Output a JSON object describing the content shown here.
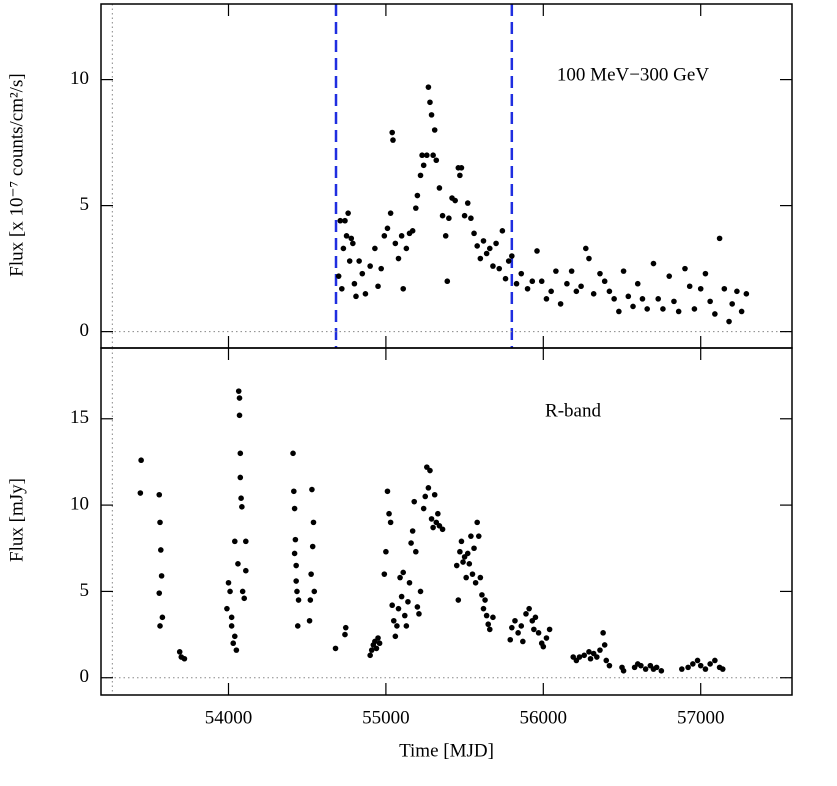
{
  "chart_data": [
    {
      "type": "scatter",
      "ylabel": "Flux [x 10⁻⁷ counts/cm²/s]",
      "annotation": "100 MeV−300 GeV",
      "color": "#000000",
      "xlim": [
        53190,
        57580
      ],
      "ylim": [
        -0.65,
        13.0
      ],
      "xticks": [
        54000,
        55000,
        56000,
        57000
      ],
      "yticks": [
        0,
        5,
        10
      ],
      "xtick_labels": false,
      "hline": 0,
      "vlines": [
        {
          "x": 53262,
          "style": "dotted",
          "color": "#888888"
        },
        {
          "x": 54683,
          "style": "dashed",
          "color": "#1f2ee0"
        },
        {
          "x": 55800,
          "style": "dashed",
          "color": "#1f2ee0"
        }
      ],
      "x": [
        54700,
        54710,
        54720,
        54730,
        54740,
        54750,
        54760,
        54770,
        54780,
        54790,
        54800,
        54810,
        54830,
        54850,
        54870,
        54900,
        54930,
        54950,
        54970,
        54990,
        55010,
        55030,
        55040,
        55045,
        55060,
        55080,
        55100,
        55110,
        55130,
        55150,
        55170,
        55190,
        55200,
        55220,
        55230,
        55240,
        55260,
        55270,
        55280,
        55290,
        55300,
        55310,
        55320,
        55340,
        55360,
        55380,
        55390,
        55400,
        55420,
        55440,
        55460,
        55470,
        55480,
        55500,
        55520,
        55540,
        55560,
        55580,
        55600,
        55620,
        55640,
        55660,
        55680,
        55700,
        55720,
        55740,
        55760,
        55780,
        55800,
        55830,
        55860,
        55900,
        55930,
        55960,
        55990,
        56020,
        56050,
        56080,
        56110,
        56150,
        56180,
        56210,
        56240,
        56270,
        56290,
        56320,
        56360,
        56390,
        56420,
        56450,
        56480,
        56510,
        56540,
        56570,
        56600,
        56630,
        56660,
        56700,
        56730,
        56760,
        56800,
        56830,
        56860,
        56900,
        56930,
        56960,
        57000,
        57030,
        57060,
        57090,
        57120,
        57150,
        57180,
        57200,
        57230,
        57260,
        57290
      ],
      "values": [
        2.2,
        4.4,
        1.7,
        3.3,
        4.4,
        3.8,
        4.7,
        2.8,
        3.7,
        3.5,
        1.9,
        1.4,
        2.8,
        2.3,
        1.5,
        2.6,
        3.3,
        1.8,
        2.5,
        3.8,
        4.1,
        4.7,
        7.9,
        7.6,
        3.5,
        2.9,
        3.8,
        1.7,
        3.3,
        3.9,
        4.0,
        4.9,
        5.4,
        6.2,
        7.0,
        6.6,
        7.0,
        9.7,
        9.1,
        8.6,
        7.0,
        8.0,
        6.8,
        5.7,
        4.6,
        3.8,
        2.0,
        4.5,
        5.3,
        5.2,
        6.5,
        6.2,
        6.5,
        4.6,
        5.1,
        4.5,
        3.9,
        3.4,
        2.9,
        3.6,
        3.1,
        3.3,
        2.6,
        3.5,
        2.5,
        4.0,
        2.1,
        2.8,
        3.0,
        1.9,
        2.3,
        1.7,
        2.0,
        3.2,
        2.0,
        1.3,
        1.6,
        2.4,
        1.1,
        1.9,
        2.4,
        1.6,
        1.8,
        3.3,
        2.9,
        1.5,
        2.3,
        2.0,
        1.6,
        1.3,
        0.8,
        2.4,
        1.4,
        1.0,
        1.9,
        1.3,
        0.9,
        2.7,
        1.3,
        0.9,
        2.2,
        1.2,
        0.8,
        2.5,
        1.8,
        0.9,
        1.7,
        2.3,
        1.2,
        0.7,
        3.7,
        1.7,
        0.4,
        1.1,
        1.6,
        0.8,
        1.5
      ]
    },
    {
      "type": "scatter",
      "ylabel": "Flux [mJy]",
      "xlabel": "Time [MJD]",
      "annotation": "R-band",
      "color": "#000000",
      "xlim": [
        53190,
        57580
      ],
      "ylim": [
        -1.0,
        19.1
      ],
      "xticks": [
        54000,
        55000,
        56000,
        57000
      ],
      "yticks": [
        0,
        5,
        10,
        15
      ],
      "xtick_labels": true,
      "hline": 0,
      "vlines": [
        {
          "x": 53262,
          "style": "dotted",
          "color": "#888888"
        }
      ],
      "x": [
        53440,
        53445,
        53560,
        53565,
        53570,
        53575,
        53560,
        53565,
        53580,
        53690,
        53700,
        53720,
        53990,
        54000,
        54010,
        54020,
        54030,
        54040,
        54050,
        54060,
        54065,
        54070,
        54075,
        54080,
        54085,
        54090,
        54100,
        54110,
        54110,
        54070,
        54075,
        54040,
        54020,
        54410,
        54415,
        54420,
        54425,
        54430,
        54435,
        54440,
        54445,
        54420,
        54430,
        54530,
        54540,
        54535,
        54525,
        54520,
        54515,
        54545,
        54680,
        54740,
        54745,
        54900,
        54910,
        54920,
        54930,
        54940,
        54950,
        54960,
        54990,
        55000,
        55010,
        55020,
        55030,
        55040,
        55050,
        55060,
        55070,
        55080,
        55090,
        55100,
        55110,
        55120,
        55130,
        55140,
        55150,
        55160,
        55170,
        55180,
        55190,
        55200,
        55210,
        55220,
        55240,
        55250,
        55260,
        55270,
        55280,
        55290,
        55300,
        55310,
        55320,
        55330,
        55340,
        55360,
        55450,
        55460,
        55470,
        55480,
        55490,
        55500,
        55510,
        55520,
        55530,
        55540,
        55550,
        55560,
        55570,
        55580,
        55590,
        55600,
        55610,
        55620,
        55630,
        55640,
        55650,
        55660,
        55680,
        55790,
        55800,
        55820,
        55840,
        55860,
        55870,
        55890,
        55910,
        55930,
        55940,
        55950,
        55970,
        55990,
        56000,
        56020,
        56040,
        56190,
        56210,
        56230,
        56260,
        56290,
        56300,
        56320,
        56340,
        56360,
        56380,
        56390,
        56400,
        56420,
        56500,
        56510,
        56580,
        56600,
        56620,
        56650,
        56680,
        56700,
        56720,
        56750,
        56880,
        56920,
        56950,
        56980,
        57000,
        57030,
        57060,
        57090,
        57120,
        57140
      ],
      "values": [
        10.7,
        12.6,
        10.6,
        9.0,
        7.4,
        5.9,
        4.9,
        3.0,
        3.5,
        1.5,
        1.2,
        1.1,
        4.0,
        5.5,
        5.0,
        3.0,
        2.0,
        7.9,
        1.6,
        6.6,
        16.6,
        15.2,
        11.6,
        10.4,
        9.9,
        5.0,
        4.6,
        6.2,
        7.9,
        16.2,
        13.0,
        2.4,
        3.5,
        13.0,
        10.8,
        9.8,
        8.0,
        6.5,
        5.0,
        3.0,
        4.5,
        7.2,
        5.6,
        10.9,
        9.0,
        7.6,
        6.0,
        4.5,
        3.3,
        5.0,
        1.7,
        2.5,
        2.9,
        1.3,
        1.6,
        1.9,
        2.1,
        1.7,
        2.3,
        2.0,
        6.0,
        7.3,
        10.8,
        9.5,
        9.0,
        4.2,
        3.3,
        2.4,
        3.0,
        4.0,
        5.8,
        4.7,
        6.1,
        3.6,
        3.0,
        4.4,
        5.5,
        7.8,
        8.5,
        10.2,
        7.3,
        4.1,
        3.7,
        5.0,
        9.8,
        10.5,
        12.2,
        11.0,
        12.0,
        9.2,
        8.7,
        10.6,
        9.0,
        9.5,
        8.8,
        8.6,
        6.5,
        4.5,
        7.3,
        7.9,
        6.7,
        7.0,
        5.8,
        7.2,
        6.6,
        8.2,
        6.0,
        7.5,
        5.5,
        9.0,
        8.2,
        5.8,
        4.8,
        4.0,
        4.5,
        3.6,
        3.1,
        2.8,
        3.5,
        2.2,
        2.9,
        3.3,
        2.6,
        3.0,
        2.1,
        3.7,
        4.0,
        3.3,
        2.8,
        3.5,
        2.6,
        2.0,
        1.8,
        2.3,
        2.8,
        1.2,
        1.0,
        1.2,
        1.3,
        1.5,
        1.1,
        1.4,
        1.2,
        1.6,
        2.6,
        1.9,
        1.0,
        0.7,
        0.6,
        0.4,
        0.6,
        0.8,
        0.7,
        0.5,
        0.7,
        0.5,
        0.6,
        0.4,
        0.5,
        0.6,
        0.8,
        1.0,
        0.7,
        0.5,
        0.8,
        1.0,
        0.6,
        0.5
      ]
    }
  ]
}
